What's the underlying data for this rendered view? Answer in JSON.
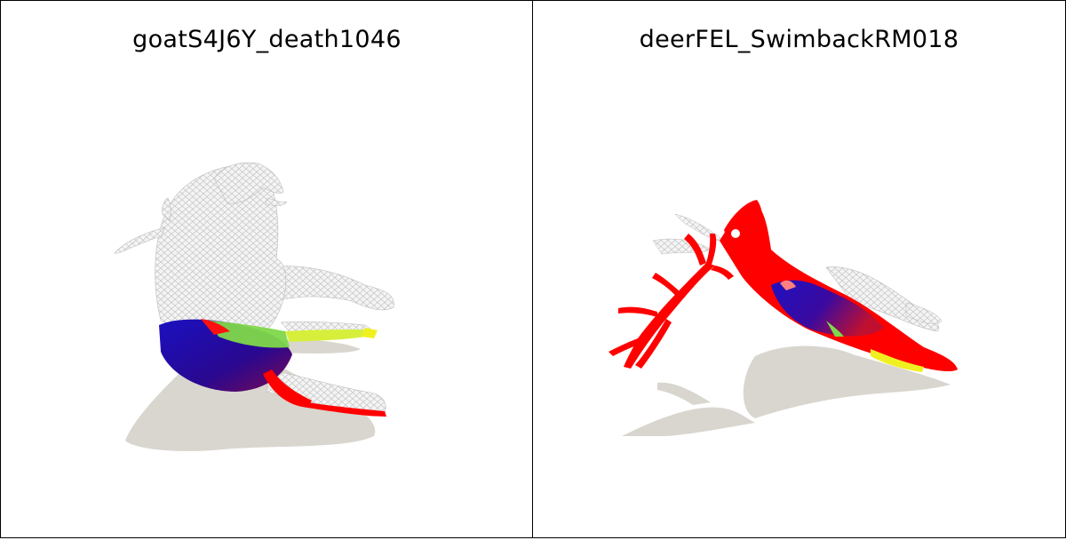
{
  "panels": [
    {
      "title": "goatS4J6Y_death1046",
      "subject": "goat"
    },
    {
      "title": "deerFEL_SwimbackRM018",
      "subject": "deer"
    }
  ],
  "colors": {
    "shadow": "#d9d6cf",
    "wire": "#f2f2f2",
    "wire_line": "#c9c9c9",
    "red": "#ff0000",
    "blue": "#1a0aa0",
    "purple": "#5a1080",
    "green": "#7fd84a",
    "yellow": "#e8f020"
  }
}
